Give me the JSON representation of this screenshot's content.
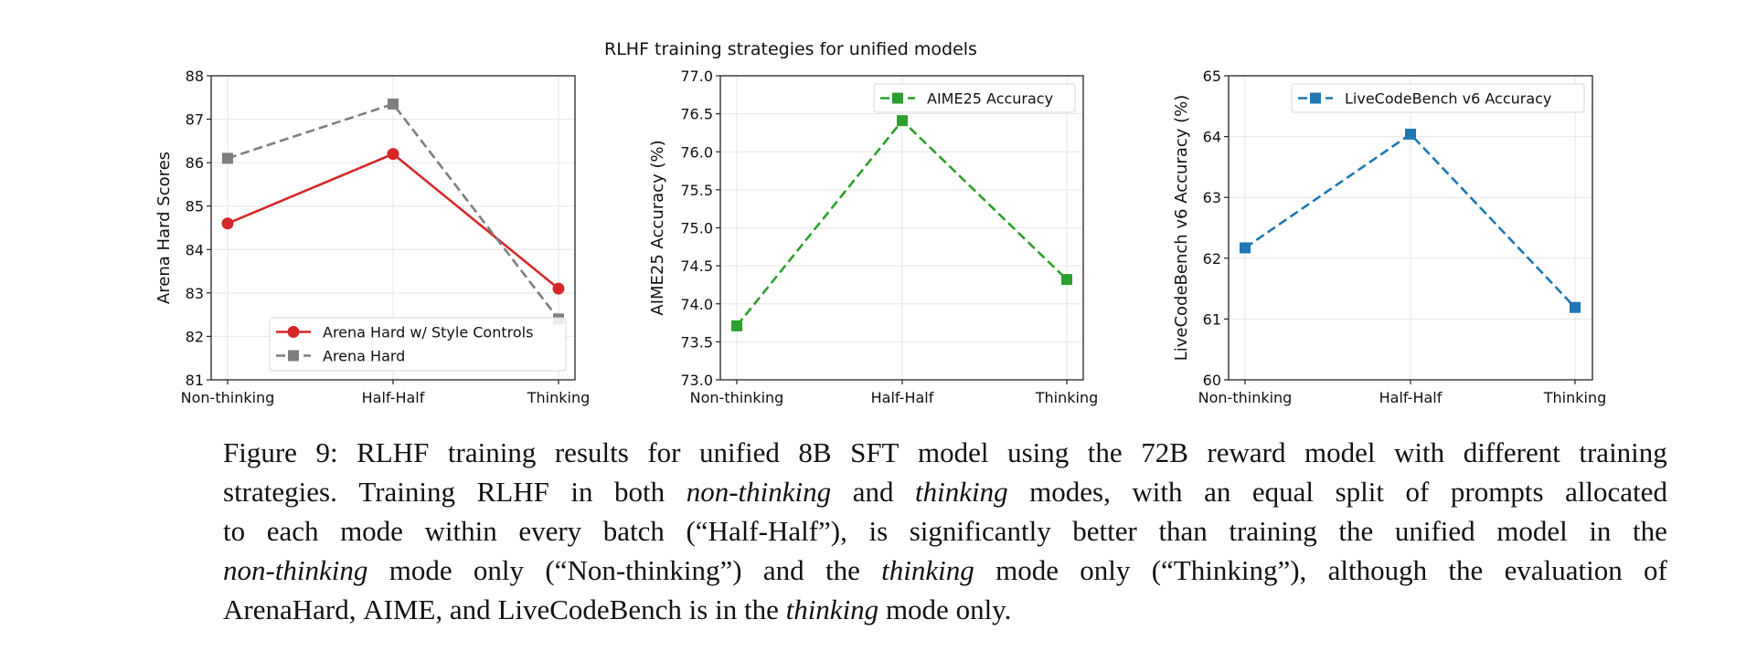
{
  "suptitle": "RLHF training strategies for unified models",
  "chart_data": [
    {
      "type": "line",
      "categories": [
        "Non-thinking",
        "Half-Half",
        "Thinking"
      ],
      "ylabel": "Arena Hard Scores",
      "ylim": [
        81,
        88
      ],
      "yticks": [
        "81",
        "82",
        "83",
        "84",
        "85",
        "86",
        "87",
        "88"
      ],
      "ytick_values": [
        81,
        82,
        83,
        84,
        85,
        86,
        87,
        88
      ],
      "grid": true,
      "legend_position": "lower-right",
      "series": [
        {
          "name": "Arena Hard w/ Style Controls",
          "values": [
            84.6,
            86.2,
            83.1
          ],
          "color": "#d62728",
          "marker": "circle",
          "dash": false
        },
        {
          "name": "Arena Hard",
          "values": [
            86.1,
            87.35,
            82.4
          ],
          "color": "#7f7f7f",
          "marker": "square",
          "dash": true
        }
      ]
    },
    {
      "type": "line",
      "categories": [
        "Non-thinking",
        "Half-Half",
        "Thinking"
      ],
      "ylabel": "AIME25 Accuracy (%)",
      "ylim": [
        73.0,
        77.0
      ],
      "yticks": [
        "73.0",
        "73.5",
        "74.0",
        "74.5",
        "75.0",
        "75.5",
        "76.0",
        "76.5",
        "77.0"
      ],
      "ytick_values": [
        73.0,
        73.5,
        74.0,
        74.5,
        75.0,
        75.5,
        76.0,
        76.5,
        77.0
      ],
      "grid": true,
      "legend_position": "upper-right",
      "series": [
        {
          "name": "AIME25 Accuracy",
          "values": [
            73.71,
            76.41,
            74.32
          ],
          "color": "#2ca02c",
          "marker": "square",
          "dash": true
        }
      ]
    },
    {
      "type": "line",
      "categories": [
        "Non-thinking",
        "Half-Half",
        "Thinking"
      ],
      "ylabel": "LiveCodeBench v6 Accuracy (%)",
      "ylim": [
        60,
        65
      ],
      "yticks": [
        "60",
        "61",
        "62",
        "63",
        "64",
        "65"
      ],
      "ytick_values": [
        60,
        61,
        62,
        63,
        64,
        65
      ],
      "grid": true,
      "legend_position": "upper-right",
      "series": [
        {
          "name": "LiveCodeBench v6 Accuracy",
          "values": [
            62.17,
            64.04,
            61.19
          ],
          "color": "#1f77b4",
          "marker": "square",
          "dash": true
        }
      ]
    }
  ],
  "caption": {
    "lines": [
      [
        {
          "t": "Figure 9: RLHF training results for unified 8B SFT model using the 72B reward model with different training"
        }
      ],
      [
        {
          "t": "strategies. Training RLHF in both "
        },
        {
          "t": "non-thinking",
          "i": true
        },
        {
          "t": " and "
        },
        {
          "t": "thinking",
          "i": true
        },
        {
          "t": " modes, with an equal split of prompts allocated"
        }
      ],
      [
        {
          "t": "to each mode within every batch (“Half-Half”), is significantly better than training the unified model in the"
        }
      ],
      [
        {
          "t": "non-thinking",
          "i": true
        },
        {
          "t": " mode only (“Non-thinking”) and the "
        },
        {
          "t": "thinking",
          "i": true
        },
        {
          "t": " mode only (“Thinking”), although the evaluation of"
        }
      ],
      [
        {
          "t": "ArenaHard, AIME, and LiveCodeBench is in the "
        },
        {
          "t": "thinking",
          "i": true
        },
        {
          "t": " mode only."
        }
      ]
    ]
  }
}
